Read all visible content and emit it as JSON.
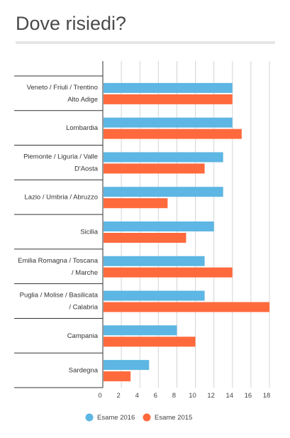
{
  "title": "Dove risiedi?",
  "chart_data": {
    "type": "bar",
    "orientation": "horizontal",
    "title": "Dove risiedi?",
    "categories": [
      [
        "Veneto / Friuli / Trentino",
        "Alto Adige"
      ],
      [
        "Lombardia"
      ],
      [
        "Piemonte / Liguria / Valle",
        "D'Aosta"
      ],
      [
        "Lazio / Umbria / Abruzzo"
      ],
      [
        "Sicilia"
      ],
      [
        "Emilia Romagna / Toscana",
        "/ Marche"
      ],
      [
        "Puglia / Molise / Basilicata",
        "/ Calabria"
      ],
      [
        "Campania"
      ],
      [
        "Sardegna"
      ]
    ],
    "series": [
      {
        "name": "Esame 2016",
        "color": "#5DB6E3",
        "values": [
          14,
          14,
          13,
          13,
          12,
          11,
          11,
          8,
          5
        ]
      },
      {
        "name": "Esame 2015",
        "color": "#FF6A3D",
        "values": [
          14,
          15,
          11,
          7,
          9,
          14,
          18,
          10,
          3
        ]
      }
    ],
    "xlim": [
      0,
      18
    ],
    "xticks": [
      "0",
      "2",
      "4",
      "6",
      "8",
      "10",
      "12",
      "14",
      "16",
      "18"
    ],
    "grid": true,
    "legend": "bottom"
  }
}
